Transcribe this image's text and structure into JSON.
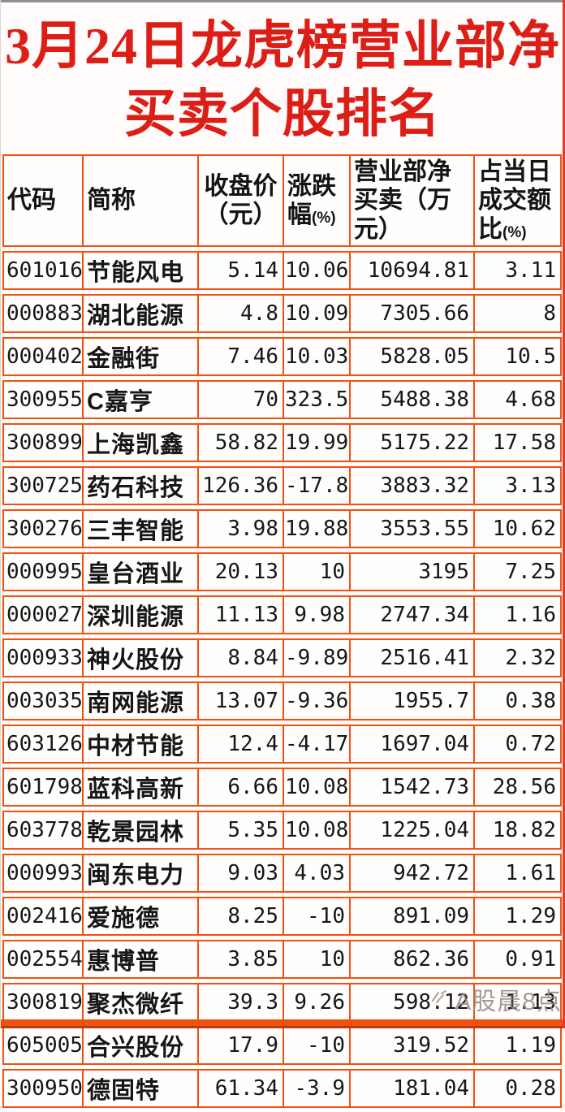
{
  "title": {
    "line1": "3月24日龙虎榜营业部净",
    "line2": "买卖个股排名"
  },
  "colors": {
    "table_border": "#f2500f",
    "title_text": "#dd1e17",
    "header_text": "#141414",
    "body_text": "#161616",
    "watermark_text": "#968a87",
    "background": "#fffcfb"
  },
  "table": {
    "headers": [
      {
        "text": "代码",
        "unit": ""
      },
      {
        "text": "简称",
        "unit": ""
      },
      {
        "text": "收盘价（元）",
        "unit": ""
      },
      {
        "text": "涨跌幅",
        "unit": "(%)"
      },
      {
        "text": "营业部净买卖（万元）",
        "unit": ""
      },
      {
        "text": "占当日成交额比",
        "unit": "(%)"
      }
    ]
  },
  "watermark": {
    "text": "A股晨8点",
    "logo": "sparkle-scribble"
  },
  "chart_data": {
    "type": "table",
    "title": "3月24日龙虎榜营业部净买卖个股排名",
    "columns": [
      "代码",
      "简称",
      "收盘价（元）",
      "涨跌幅(%)",
      "营业部净买卖（万元）",
      "占当日成交额比(%)"
    ],
    "rows": [
      [
        "601016",
        "节能风电",
        "5.14",
        "10.06",
        "10694.81",
        "3.11"
      ],
      [
        "000883",
        "湖北能源",
        "4.8",
        "10.09",
        "7305.66",
        "8"
      ],
      [
        "000402",
        "金融街",
        "7.46",
        "10.03",
        "5828.05",
        "10.5"
      ],
      [
        "300955",
        "C嘉亨",
        "70",
        "323.5",
        "5488.38",
        "4.68"
      ],
      [
        "300899",
        "上海凯鑫",
        "58.82",
        "19.99",
        "5175.22",
        "17.58"
      ],
      [
        "300725",
        "药石科技",
        "126.36",
        "-17.8",
        "3883.32",
        "3.13"
      ],
      [
        "300276",
        "三丰智能",
        "3.98",
        "19.88",
        "3553.55",
        "10.62"
      ],
      [
        "000995",
        "皇台酒业",
        "20.13",
        "10",
        "3195",
        "7.25"
      ],
      [
        "000027",
        "深圳能源",
        "11.13",
        "9.98",
        "2747.34",
        "1.16"
      ],
      [
        "000933",
        "神火股份",
        "8.84",
        "-9.89",
        "2516.41",
        "2.32"
      ],
      [
        "003035",
        "南网能源",
        "13.07",
        "-9.36",
        "1955.7",
        "0.38"
      ],
      [
        "603126",
        "中材节能",
        "12.4",
        "-4.17",
        "1697.04",
        "0.72"
      ],
      [
        "601798",
        "蓝科高新",
        "6.66",
        "10.08",
        "1542.73",
        "28.56"
      ],
      [
        "603778",
        "乾景园林",
        "5.35",
        "10.08",
        "1225.04",
        "18.82"
      ],
      [
        "000993",
        "闽东电力",
        "9.03",
        "4.03",
        "942.72",
        "1.61"
      ],
      [
        "002416",
        "爱施德",
        "8.25",
        "-10",
        "891.09",
        "1.29"
      ],
      [
        "002554",
        "惠博普",
        "3.85",
        "10",
        "862.36",
        "0.91"
      ],
      [
        "300819",
        "聚杰微纤",
        "39.3",
        "9.26",
        "598.12",
        "1.13"
      ],
      [
        "605005",
        "合兴股份",
        "17.9",
        "-10",
        "319.52",
        "1.19"
      ],
      [
        "300950",
        "德固特",
        "61.34",
        "-3.9",
        "181.04",
        "0.28"
      ]
    ]
  }
}
